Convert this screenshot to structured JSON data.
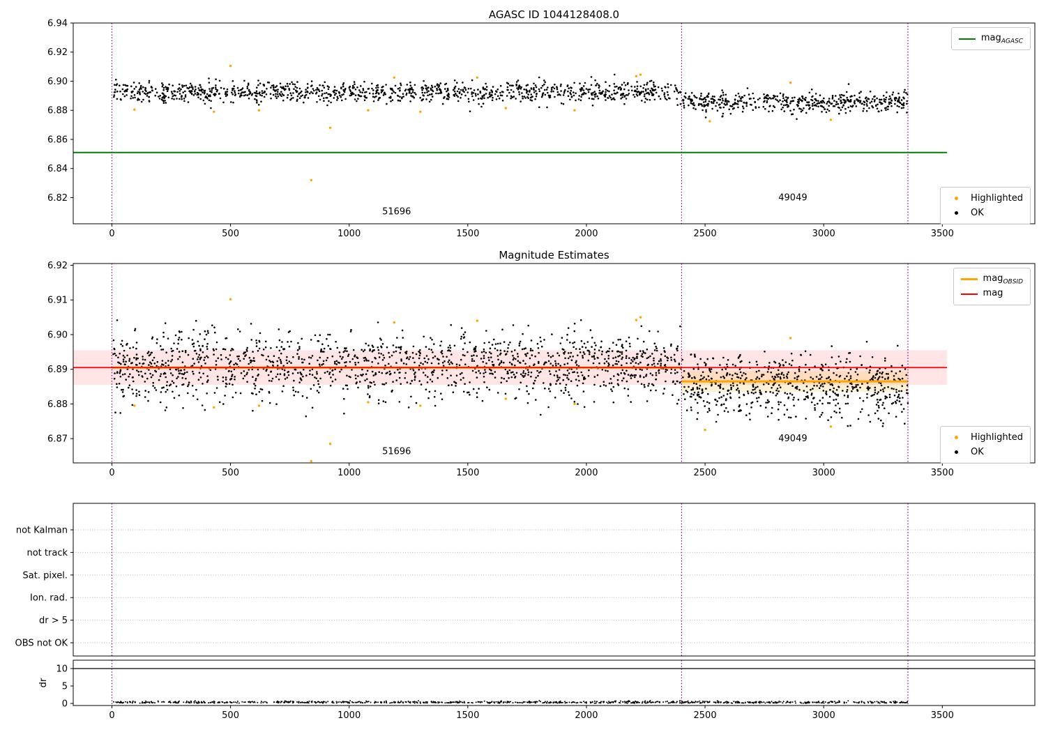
{
  "titles": {
    "panel1": "AGASC ID 1044128408.0",
    "panel2": "Magnitude Estimates"
  },
  "legends": {
    "p1_top": {
      "items": [
        {
          "prefix": "mag",
          "sub": "AGASC",
          "color": "#008000",
          "type": "line",
          "lw": 2
        }
      ]
    },
    "p1_bottom": {
      "items": [
        {
          "label": "Highlighted",
          "color": "#FFA500",
          "type": "dot"
        },
        {
          "label": "OK",
          "color": "#000000",
          "type": "dot"
        }
      ]
    },
    "p2_top": {
      "items": [
        {
          "prefix": "mag",
          "sub": "OBSID",
          "color": "#FFA500",
          "type": "line",
          "lw": 3
        },
        {
          "prefix": "mag",
          "sub": "",
          "color": "#FF0000",
          "type": "line",
          "lw": 2
        }
      ]
    },
    "p2_bottom": {
      "items": [
        {
          "label": "Highlighted",
          "color": "#FFA500",
          "type": "dot"
        },
        {
          "label": "OK",
          "color": "#000000",
          "type": "dot"
        }
      ]
    }
  },
  "colors": {
    "mag_agasc_line": "#008000",
    "mag_obsid_line": "#FFA500",
    "mag_line": "#FF0000",
    "highlighted": "#FFA500",
    "ok": "#000000",
    "obsid_divider": "#800080"
  },
  "chart_data": [
    {
      "type": "scatter",
      "title": "AGASC ID 1044128408.0",
      "xlim": [
        -163,
        3890
      ],
      "ylim": [
        6.802,
        6.94
      ],
      "xticks": [
        0,
        500,
        1000,
        1500,
        2000,
        2500,
        3000,
        3500
      ],
      "yticks": [
        6.82,
        6.84,
        6.86,
        6.88,
        6.9,
        6.92,
        6.94
      ],
      "ytick_decimals": 2,
      "legend_top": [
        "mag_AGASC"
      ],
      "legend_bottom": [
        "Highlighted",
        "OK"
      ],
      "vlines": {
        "x": [
          0,
          2401,
          3355
        ],
        "color": "#800080"
      },
      "hlines": [
        {
          "y": 6.851,
          "x0": -163,
          "x1": 3520,
          "color": "#008000",
          "width": 2,
          "label": "mag_AGASC"
        }
      ],
      "bands": [],
      "series": [
        {
          "name": "OK",
          "color": "#000000",
          "marker_size": 1.3,
          "seed": 11,
          "clusters": [
            {
              "x0": 5,
              "x1": 2398,
              "n": 1150,
              "mean": 6.8925,
              "std": 0.0035,
              "ymin": 6.8745,
              "ymax": 6.9055
            },
            {
              "x0": 2404,
              "x1": 3355,
              "n": 500,
              "mean": 6.8855,
              "std": 0.0035,
              "ymin": 6.871,
              "ymax": 6.8985
            }
          ]
        },
        {
          "name": "Highlighted",
          "color": "#FFA500",
          "marker_size": 1.7,
          "points": [
            [
              95,
              6.8805
            ],
            [
              430,
              6.879
            ],
            [
              500,
              6.9105
            ],
            [
              620,
              6.88
            ],
            [
              840,
              6.832
            ],
            [
              920,
              6.868
            ],
            [
              1080,
              6.88
            ],
            [
              1190,
              6.9025
            ],
            [
              1300,
              6.879
            ],
            [
              1540,
              6.9025
            ],
            [
              1660,
              6.8815
            ],
            [
              1950,
              6.88
            ],
            [
              2210,
              6.9035
            ],
            [
              2228,
              6.9045
            ],
            [
              2520,
              6.8725
            ],
            [
              2860,
              6.899
            ],
            [
              3030,
              6.8735
            ]
          ]
        }
      ],
      "annotations": [
        {
          "text": "51696",
          "x": 1200,
          "y": 6.8085
        },
        {
          "text": "49049",
          "x": 2870,
          "y": 6.818
        }
      ]
    },
    {
      "type": "scatter",
      "title": "Magnitude Estimates",
      "xlim": [
        -163,
        3890
      ],
      "ylim": [
        6.863,
        6.9205
      ],
      "xticks": [
        0,
        500,
        1000,
        1500,
        2000,
        2500,
        3000,
        3500
      ],
      "yticks": [
        6.87,
        6.88,
        6.89,
        6.9,
        6.91,
        6.92
      ],
      "ytick_decimals": 2,
      "legend_top": [
        "mag_OBSID",
        "mag"
      ],
      "legend_bottom": [
        "Highlighted",
        "OK"
      ],
      "vlines": {
        "x": [
          0,
          2401,
          3355
        ],
        "color": "#800080"
      },
      "bands": [
        {
          "x0": -163,
          "x1": 3520,
          "y0": 6.8855,
          "y1": 6.8955,
          "color": "#ff0000",
          "alpha": 0.1
        },
        {
          "x0": 2401,
          "x1": 3355,
          "y0": 6.8835,
          "y1": 6.8895,
          "color": "#ffa500",
          "alpha": 0.16
        }
      ],
      "hlines": [
        {
          "y": 6.8905,
          "x0": 0,
          "x1": 2401,
          "color": "#FFA500",
          "width": 3,
          "label": "mag_OBSID_51696"
        },
        {
          "y": 6.8865,
          "x0": 2401,
          "x1": 3355,
          "color": "#FFA500",
          "width": 3,
          "label": "mag_OBSID_49049"
        },
        {
          "y": 6.8905,
          "x0": -163,
          "x1": 3520,
          "color": "#FF0000",
          "width": 1.8,
          "label": "mag"
        }
      ],
      "series": [
        {
          "name": "OK",
          "color": "#000000",
          "marker_size": 1.3,
          "seed": 23,
          "clusters": [
            {
              "x0": 5,
              "x1": 2398,
              "n": 1500,
              "mean": 6.891,
              "std": 0.0048,
              "ymin": 6.876,
              "ymax": 6.9045
            },
            {
              "x0": 2404,
              "x1": 3355,
              "n": 650,
              "mean": 6.8852,
              "std": 0.0048,
              "ymin": 6.8725,
              "ymax": 6.8985
            }
          ]
        },
        {
          "name": "Highlighted",
          "color": "#FFA500",
          "marker_size": 1.7,
          "points": [
            [
              95,
              6.8795
            ],
            [
              430,
              6.879
            ],
            [
              500,
              6.9102
            ],
            [
              620,
              6.8795
            ],
            [
              840,
              6.8635
            ],
            [
              920,
              6.8685
            ],
            [
              1080,
              6.8805
            ],
            [
              1190,
              6.9035
            ],
            [
              1300,
              6.8795
            ],
            [
              1540,
              6.904
            ],
            [
              1660,
              6.8815
            ],
            [
              1950,
              6.88
            ],
            [
              2210,
              6.9042
            ],
            [
              2228,
              6.905
            ],
            [
              2500,
              6.8725
            ],
            [
              2860,
              6.899
            ],
            [
              3030,
              6.8735
            ]
          ]
        }
      ],
      "annotations": [
        {
          "text": "51696",
          "x": 1200,
          "y": 6.8655
        },
        {
          "text": "49049",
          "x": 2870,
          "y": 6.8692
        }
      ]
    },
    {
      "type": "scatter",
      "title": "",
      "xlim": [
        -163,
        3890
      ],
      "xticks": [
        0,
        500,
        1000,
        1500,
        2000,
        2500,
        3000,
        3500
      ],
      "vlines": {
        "x": [
          0,
          2401,
          3355
        ],
        "color": "#800080"
      },
      "flags": {
        "categories": [
          "not Kalman",
          "not track",
          "Sat. pixel.",
          "Ion. rad.",
          "dr > 5",
          "OBS not OK"
        ]
      },
      "dr": {
        "ylabel": "dr",
        "ylim": [
          -0.6,
          12.4
        ],
        "yticks": [
          0,
          5,
          10
        ],
        "hline": 10,
        "series": {
          "color": "#000000",
          "marker_size": 1.0,
          "seed": 37,
          "cluster": {
            "x0": 5,
            "x1": 3355,
            "n": 900,
            "mean": 0.32,
            "std": 0.16,
            "ymin": 0.04,
            "ymax": 0.95
          }
        }
      }
    }
  ]
}
